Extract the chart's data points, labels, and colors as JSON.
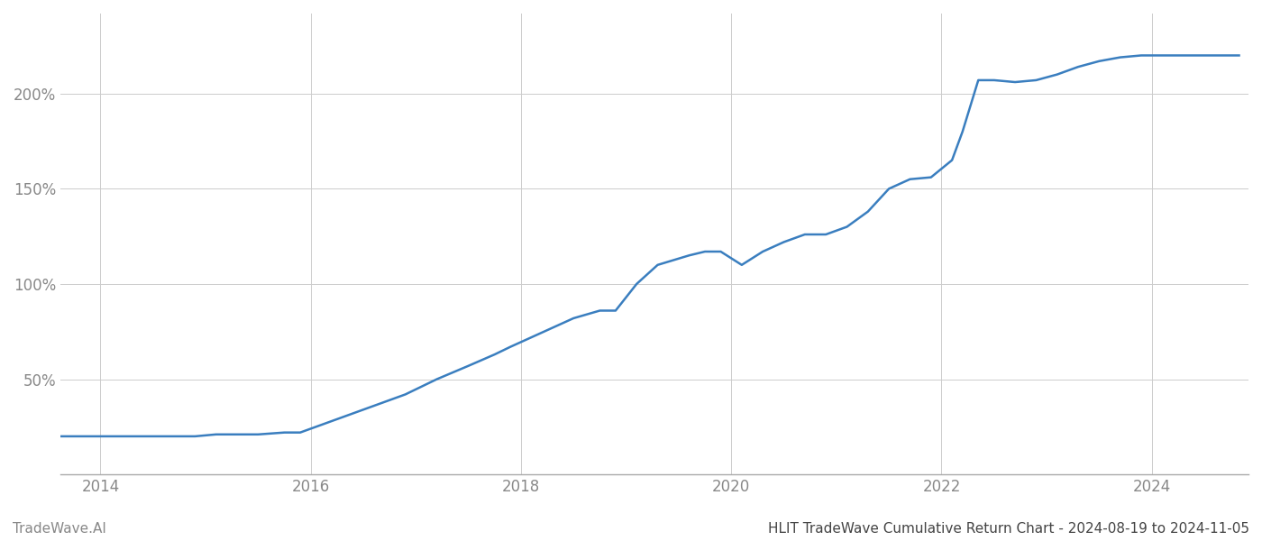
{
  "title": "HLIT TradeWave Cumulative Return Chart - 2024-08-19 to 2024-11-05",
  "watermark": "TradeWave.AI",
  "line_color": "#3a7ebf",
  "line_width": 1.8,
  "background_color": "#ffffff",
  "grid_color": "#cccccc",
  "tick_color": "#888888",
  "x_tick_years": [
    2014,
    2016,
    2018,
    2020,
    2022,
    2024
  ],
  "y_ticks": [
    0.5,
    1.0,
    1.5,
    2.0
  ],
  "y_tick_labels": [
    "50%",
    "100%",
    "150%",
    "200%"
  ],
  "xlim_start": 2013.62,
  "xlim_end": 2024.92,
  "ylim_min": 0.0,
  "ylim_max": 2.42,
  "data_x": [
    2013.63,
    2013.9,
    2014.1,
    2014.4,
    2014.7,
    2014.9,
    2015.1,
    2015.3,
    2015.5,
    2015.75,
    2015.9,
    2016.1,
    2016.4,
    2016.7,
    2016.9,
    2017.2,
    2017.5,
    2017.75,
    2017.9,
    2018.1,
    2018.3,
    2018.5,
    2018.75,
    2018.9,
    2019.1,
    2019.3,
    2019.6,
    2019.75,
    2019.9,
    2020.1,
    2020.3,
    2020.5,
    2020.7,
    2020.9,
    2021.1,
    2021.3,
    2021.5,
    2021.7,
    2021.9,
    2022.1,
    2022.2,
    2022.35,
    2022.5,
    2022.7,
    2022.9,
    2023.1,
    2023.3,
    2023.5,
    2023.7,
    2023.9,
    2024.1,
    2024.5,
    2024.83
  ],
  "data_y": [
    0.2,
    0.2,
    0.2,
    0.2,
    0.2,
    0.2,
    0.21,
    0.21,
    0.21,
    0.22,
    0.22,
    0.26,
    0.32,
    0.38,
    0.42,
    0.5,
    0.57,
    0.63,
    0.67,
    0.72,
    0.77,
    0.82,
    0.86,
    0.86,
    1.0,
    1.1,
    1.15,
    1.17,
    1.17,
    1.1,
    1.17,
    1.22,
    1.26,
    1.26,
    1.3,
    1.38,
    1.5,
    1.55,
    1.56,
    1.65,
    1.8,
    2.07,
    2.07,
    2.06,
    2.07,
    2.1,
    2.14,
    2.17,
    2.19,
    2.2,
    2.2,
    2.2,
    2.2
  ]
}
